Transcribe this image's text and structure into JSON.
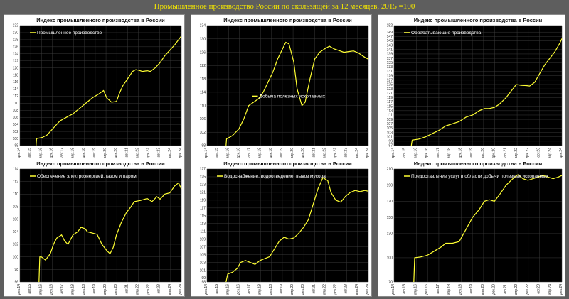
{
  "page": {
    "title": "Промышленное производство России по скользящей за 12 месяцев, 2015 =100"
  },
  "colors": {
    "background": "#5e5e5e",
    "plot_background": "#000000",
    "series": "#ffff33",
    "grid": "#3a3a3a"
  },
  "x_tick_labels": [
    "дек.14",
    "авг.15",
    "апр.16",
    "дек.16",
    "авг.17",
    "апр.18",
    "дек.18",
    "авг.19",
    "апр.20",
    "дек.20",
    "авг.21",
    "апр.22",
    "дек.22",
    "авг.23",
    "апр.24",
    "дек.24"
  ],
  "chart_data": [
    {
      "type": "line",
      "title": "Индекс промышленного производства в России",
      "legend": "Промышленное производство",
      "ylim": [
        98,
        132
      ],
      "yticks": [
        98,
        100,
        102,
        104,
        106,
        108,
        110,
        112,
        114,
        116,
        118,
        120,
        122,
        124,
        126,
        128,
        130,
        132
      ],
      "legend_pos": "top-left",
      "x": [
        2015.92,
        2015.95,
        2016.3,
        2016.6,
        2017.0,
        2017.4,
        2017.8,
        2018.2,
        2018.6,
        2019.0,
        2019.4,
        2019.8,
        2020.1,
        2020.3,
        2020.6,
        2020.9,
        2021.1,
        2021.3,
        2021.6,
        2021.9,
        2022.1,
        2022.3,
        2022.5,
        2022.8,
        2023.0,
        2023.3,
        2023.6,
        2023.9,
        2024.2,
        2024.5,
        2024.75,
        2024.9
      ],
      "y": [
        98,
        100,
        100.3,
        101,
        103,
        105,
        106,
        107,
        108.5,
        110,
        111.5,
        112.6,
        113.6,
        111.5,
        110.3,
        110.5,
        113,
        115,
        117,
        119,
        119.5,
        119.3,
        119,
        119.2,
        119,
        120,
        121.5,
        123.5,
        125,
        126.5,
        128,
        128.9
      ]
    },
    {
      "type": "line",
      "title": "Индекс промышленного производства в России",
      "legend": "Добыча полезных ископаемых",
      "ylim": [
        98,
        134
      ],
      "yticks": [
        98,
        102,
        106,
        110,
        114,
        118,
        122,
        126,
        130,
        134
      ],
      "legend_pos": "center",
      "x": [
        2016.1,
        2016.13,
        2016.5,
        2016.9,
        2017.2,
        2017.5,
        2017.8,
        2018.1,
        2018.4,
        2018.7,
        2019.0,
        2019.3,
        2019.6,
        2019.8,
        2020.0,
        2020.3,
        2020.5,
        2020.8,
        2021.0,
        2021.3,
        2021.6,
        2021.9,
        2022.2,
        2022.5,
        2022.8,
        2023.1,
        2023.4,
        2023.7,
        2024.0,
        2024.3,
        2024.6,
        2024.8,
        2024.92
      ],
      "y": [
        98,
        100,
        101,
        103,
        106,
        110,
        111,
        112,
        114,
        117,
        120,
        124,
        127,
        129,
        128.5,
        123,
        115,
        110,
        111,
        118,
        124,
        126,
        127,
        127.8,
        127,
        126.5,
        126,
        126.2,
        126.4,
        125.8,
        124.8,
        124.2,
        123.9
      ]
    },
    {
      "type": "line",
      "title": "Индекс промышленного производства в России",
      "legend": "Обрабатывающие производства",
      "ylim": [
        97,
        152
      ],
      "yticks": [
        97,
        99,
        101,
        103,
        105,
        107,
        109,
        111,
        113,
        115,
        117,
        119,
        121,
        123,
        125,
        127,
        129,
        131,
        133,
        135,
        137,
        139,
        141,
        143,
        145,
        147,
        149,
        152
      ],
      "legend_pos": "top-left",
      "x": [
        2015.95,
        2016.0,
        2016.4,
        2016.8,
        2017.2,
        2017.6,
        2018.0,
        2018.4,
        2018.8,
        2019.2,
        2019.6,
        2020.0,
        2020.3,
        2020.6,
        2020.9,
        2021.2,
        2021.6,
        2022.0,
        2022.2,
        2022.5,
        2022.8,
        2023.0,
        2023.3,
        2023.6,
        2023.9,
        2024.2,
        2024.5,
        2024.8,
        2024.92
      ],
      "y": [
        97,
        99.5,
        100,
        101,
        102.5,
        104,
        106,
        107,
        108,
        110,
        111,
        113,
        114,
        114,
        114.5,
        116,
        119,
        123,
        125,
        124.6,
        124.5,
        124.3,
        126,
        130,
        134,
        137,
        140,
        144,
        146
      ]
    },
    {
      "type": "line",
      "title": "Индекс промышленного производства в России",
      "legend": "Обеспечение электроэнергией, газом и паром",
      "ylim": [
        96,
        114
      ],
      "yticks": [
        96,
        98,
        100,
        102,
        104,
        106,
        108,
        110,
        112,
        114
      ],
      "legend_pos": "top-left",
      "x": [
        2016.1,
        2016.15,
        2016.25,
        2016.5,
        2016.8,
        2017.0,
        2017.2,
        2017.5,
        2017.7,
        2017.9,
        2018.2,
        2018.5,
        2018.7,
        2018.95,
        2019.1,
        2019.4,
        2019.7,
        2020.0,
        2020.3,
        2020.5,
        2020.7,
        2020.9,
        2021.2,
        2021.5,
        2021.8,
        2022.0,
        2022.4,
        2022.8,
        2023.1,
        2023.4,
        2023.6,
        2023.9,
        2024.2,
        2024.5,
        2024.75,
        2024.92
      ],
      "y": [
        96,
        100,
        100,
        99.5,
        100.5,
        102,
        103,
        103.5,
        102.5,
        102,
        103.5,
        104,
        104.7,
        104.5,
        104,
        103.8,
        103.6,
        102,
        101,
        100.5,
        101.5,
        103.5,
        105.5,
        107,
        108,
        108.8,
        109,
        109.3,
        108.8,
        109.6,
        109.2,
        110,
        110.2,
        111.3,
        111.8,
        110.8
      ]
    },
    {
      "type": "line",
      "title": "Индекс промышленного производства в России",
      "legend": "Водоснабжение, водоотведение, вывоз мусора",
      "ylim": [
        98,
        127
      ],
      "yticks": [
        98,
        99,
        101,
        103,
        105,
        107,
        109,
        111,
        113,
        115,
        117,
        119,
        121,
        123,
        125,
        127
      ],
      "legend_pos": "top-left",
      "x": [
        2016.1,
        2016.2,
        2016.5,
        2016.8,
        2017.0,
        2017.3,
        2017.6,
        2017.9,
        2018.2,
        2018.5,
        2018.8,
        2019.1,
        2019.4,
        2019.7,
        2020.0,
        2020.3,
        2020.6,
        2020.9,
        2021.2,
        2021.5,
        2021.8,
        2022.1,
        2022.4,
        2022.6,
        2022.9,
        2023.2,
        2023.5,
        2023.8,
        2024.1,
        2024.4,
        2024.7,
        2024.92
      ],
      "y": [
        98,
        100,
        100.5,
        101.5,
        103,
        103.5,
        103,
        102.5,
        103.5,
        104,
        104.5,
        106.5,
        108.5,
        109.5,
        109,
        109.3,
        110.5,
        112,
        114,
        118,
        122,
        124.8,
        124,
        121,
        119,
        118.5,
        120,
        121,
        121.5,
        121.2,
        121.5,
        121.3
      ]
    },
    {
      "type": "line",
      "title": "Индекс промышленного производства в России",
      "legend": "Предоставление услуг в области добычи полезных ископаемых",
      "ylim": [
        70,
        210
      ],
      "yticks": [
        70,
        100,
        130,
        150,
        170,
        190,
        210
      ],
      "legend_pos": "top-left",
      "x": [
        2016.1,
        2016.15,
        2016.5,
        2016.9,
        2017.3,
        2017.7,
        2018.0,
        2018.4,
        2018.8,
        2019.2,
        2019.6,
        2020.0,
        2020.3,
        2020.6,
        2020.9,
        2021.2,
        2021.6,
        2022.0,
        2022.3,
        2022.6,
        2022.9,
        2023.2,
        2023.5,
        2023.8,
        2024.1,
        2024.4,
        2024.7,
        2024.92
      ],
      "y": [
        70,
        100,
        101,
        103,
        108,
        113,
        118,
        118,
        120,
        135,
        150,
        160,
        170,
        172,
        170,
        178,
        190,
        198,
        203,
        198,
        196,
        198,
        200,
        202,
        200,
        198,
        200,
        202
      ]
    }
  ]
}
